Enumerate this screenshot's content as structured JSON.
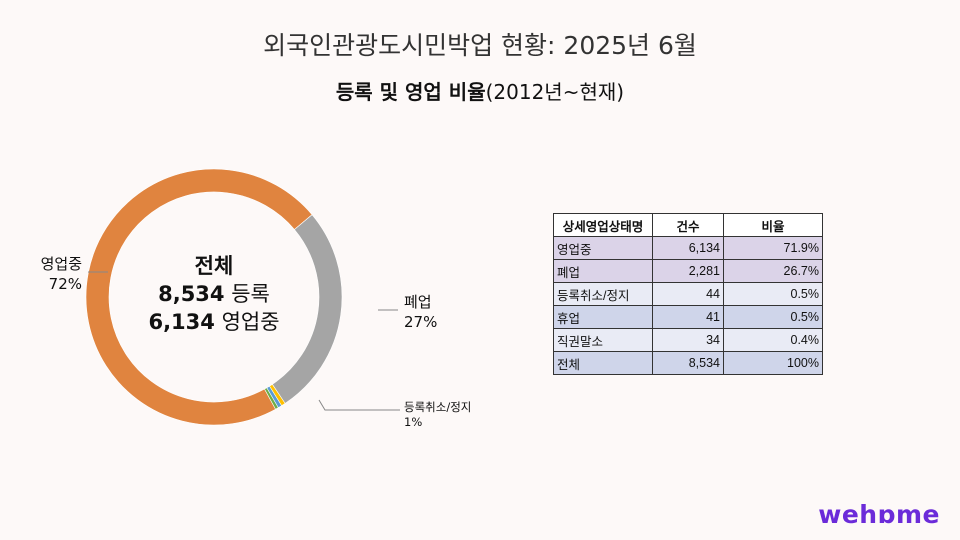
{
  "title": "외국인관광도시민박업 현황: 2025년 6월",
  "subtitle_bold": "등록 및 영업 비율",
  "subtitle_rest": "(2012년~현재)",
  "chart_data": {
    "type": "pie",
    "donut": true,
    "slices": [
      {
        "name": "폐업",
        "value": 2281,
        "percent": 26.7,
        "color": "#a5a5a5",
        "label": "폐업",
        "pct_label": "27%"
      },
      {
        "name": "등록취소/정지",
        "value": 44,
        "percent": 0.5,
        "color": "#ffc000",
        "label": "등록취소/정지",
        "pct_label": "1%"
      },
      {
        "name": "휴업",
        "value": 41,
        "percent": 0.5,
        "color": "#5b9bd5"
      },
      {
        "name": "직권말소",
        "value": 34,
        "percent": 0.4,
        "color": "#70ad47"
      },
      {
        "name": "영업중",
        "value": 6134,
        "percent": 71.9,
        "color": "#e0843f",
        "label": "영업중",
        "pct_label": "72%"
      }
    ],
    "center": {
      "line1": "전체",
      "line2_num": "8,534",
      "line2_text": "등록",
      "line3_num": "6,134",
      "line3_text": "영업중"
    }
  },
  "table": {
    "headers": [
      "상세영업상태명",
      "건수",
      "비율"
    ],
    "rows": [
      [
        "영업중",
        "6,134",
        "71.9%"
      ],
      [
        "폐업",
        "2,281",
        "26.7%"
      ],
      [
        "등록취소/정지",
        "44",
        "0.5%"
      ],
      [
        "휴업",
        "41",
        "0.5%"
      ],
      [
        "직권말소",
        "34",
        "0.4%"
      ],
      [
        "전체",
        "8,534",
        "100%"
      ]
    ],
    "row_colors": [
      "#dbd3e8",
      "#dbd3e8",
      "#e9ebf5",
      "#cfd5ea",
      "#e9ebf5",
      "#cfd5ea"
    ]
  },
  "logo": "wehome"
}
